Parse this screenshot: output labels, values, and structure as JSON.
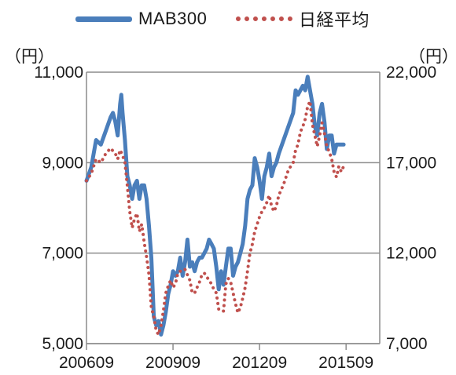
{
  "chart_data": {
    "type": "line",
    "title": "",
    "xlabel": "",
    "left_axis": {
      "unit": "（円）",
      "ylim": [
        5000,
        11000
      ],
      "ticks": [
        "5,000",
        "7,000",
        "9,000",
        "11,000"
      ],
      "tick_values": [
        5000,
        7000,
        9000,
        11000
      ]
    },
    "right_axis": {
      "unit": "（円）",
      "ylim": [
        7000,
        22000
      ],
      "ticks": [
        "7,000",
        "12,000",
        "17,000",
        "22,000"
      ],
      "tick_values": [
        7000,
        12000,
        17000,
        22000
      ]
    },
    "x_ticks": [
      "200609",
      "200909",
      "201209",
      "201509"
    ],
    "x_tick_positions": [
      0,
      36,
      72,
      108
    ],
    "x_range": [
      0,
      122
    ],
    "grid": {
      "horizontal": true,
      "vertical": false
    },
    "legend": "top",
    "series": [
      {
        "name": "MAB300",
        "axis": "left",
        "color": "#4a7ebb",
        "style": "solid",
        "points": [
          [
            0,
            8600
          ],
          [
            2,
            8900
          ],
          [
            4,
            9500
          ],
          [
            6,
            9400
          ],
          [
            8,
            9700
          ],
          [
            10,
            10000
          ],
          [
            11,
            10100
          ],
          [
            12,
            9900
          ],
          [
            13,
            9600
          ],
          [
            14,
            10300
          ],
          [
            14.5,
            10500
          ],
          [
            15,
            10100
          ],
          [
            16,
            9500
          ],
          [
            17,
            8700
          ],
          [
            18,
            8500
          ],
          [
            19,
            8200
          ],
          [
            20,
            8500
          ],
          [
            21,
            8600
          ],
          [
            22,
            8200
          ],
          [
            23,
            8500
          ],
          [
            24,
            8500
          ],
          [
            25,
            8200
          ],
          [
            26,
            7600
          ],
          [
            27,
            6900
          ],
          [
            28,
            5600
          ],
          [
            29,
            5400
          ],
          [
            30,
            5500
          ],
          [
            31,
            5200
          ],
          [
            32,
            5400
          ],
          [
            33,
            5700
          ],
          [
            34,
            6100
          ],
          [
            35,
            6300
          ],
          [
            36,
            6600
          ],
          [
            37,
            6500
          ],
          [
            38,
            6600
          ],
          [
            39,
            6900
          ],
          [
            40,
            6500
          ],
          [
            41,
            6800
          ],
          [
            42,
            7300
          ],
          [
            43,
            6700
          ],
          [
            44,
            6800
          ],
          [
            45,
            6600
          ],
          [
            46,
            6800
          ],
          [
            47,
            6900
          ],
          [
            48,
            6900
          ],
          [
            50,
            7100
          ],
          [
            51,
            7300
          ],
          [
            52,
            7200
          ],
          [
            53,
            7100
          ],
          [
            54,
            6700
          ],
          [
            55,
            6200
          ],
          [
            56,
            6600
          ],
          [
            57,
            6300
          ],
          [
            58,
            6700
          ],
          [
            59,
            7100
          ],
          [
            60,
            7100
          ],
          [
            61,
            6500
          ],
          [
            62,
            6700
          ],
          [
            63,
            6800
          ],
          [
            64,
            7000
          ],
          [
            65,
            7200
          ],
          [
            66,
            7600
          ],
          [
            67,
            8200
          ],
          [
            68,
            8400
          ],
          [
            69,
            8500
          ],
          [
            70,
            9100
          ],
          [
            71,
            8900
          ],
          [
            72,
            8600
          ],
          [
            73,
            8200
          ],
          [
            74,
            8700
          ],
          [
            75,
            8900
          ],
          [
            76,
            9200
          ],
          [
            77,
            8700
          ],
          [
            78,
            8900
          ],
          [
            79,
            9000
          ],
          [
            80,
            9200
          ],
          [
            82,
            9500
          ],
          [
            84,
            9800
          ],
          [
            86,
            10100
          ],
          [
            87,
            10600
          ],
          [
            88,
            10500
          ],
          [
            90,
            10700
          ],
          [
            91,
            10600
          ],
          [
            92,
            10900
          ],
          [
            93,
            10600
          ],
          [
            94,
            10300
          ],
          [
            95,
            9800
          ],
          [
            96,
            9600
          ],
          [
            97,
            10100
          ],
          [
            98,
            10300
          ],
          [
            99,
            9900
          ],
          [
            100,
            9300
          ],
          [
            101,
            9600
          ],
          [
            102,
            9600
          ],
          [
            103,
            9200
          ],
          [
            104,
            9400
          ],
          [
            105,
            9400
          ],
          [
            106,
            9400
          ],
          [
            107,
            9400
          ]
        ]
      },
      {
        "name": "日経平均",
        "axis": "right",
        "color": "#c0504d",
        "style": "dotted",
        "points": [
          [
            0,
            16000
          ],
          [
            2,
            16400
          ],
          [
            4,
            17200
          ],
          [
            6,
            17000
          ],
          [
            8,
            17500
          ],
          [
            10,
            17800
          ],
          [
            12,
            17500
          ],
          [
            13,
            17200
          ],
          [
            14,
            17700
          ],
          [
            15,
            17400
          ],
          [
            16,
            17000
          ],
          [
            17,
            15700
          ],
          [
            18,
            14300
          ],
          [
            19,
            13400
          ],
          [
            20,
            13900
          ],
          [
            21,
            14200
          ],
          [
            22,
            13200
          ],
          [
            23,
            13600
          ],
          [
            24,
            12600
          ],
          [
            25,
            11800
          ],
          [
            26,
            10800
          ],
          [
            27,
            9000
          ],
          [
            28,
            8500
          ],
          [
            29,
            7700
          ],
          [
            30,
            7500
          ],
          [
            31,
            8000
          ],
          [
            32,
            8800
          ],
          [
            33,
            9800
          ],
          [
            34,
            10200
          ],
          [
            35,
            10500
          ],
          [
            36,
            10100
          ],
          [
            37,
            10300
          ],
          [
            38,
            10900
          ],
          [
            39,
            11000
          ],
          [
            40,
            11000
          ],
          [
            41,
            11100
          ],
          [
            42,
            10800
          ],
          [
            43,
            10500
          ],
          [
            44,
            9800
          ],
          [
            45,
            9800
          ],
          [
            46,
            10100
          ],
          [
            47,
            10400
          ],
          [
            48,
            10800
          ],
          [
            49,
            10900
          ],
          [
            50,
            10700
          ],
          [
            51,
            10500
          ],
          [
            52,
            10300
          ],
          [
            53,
            10000
          ],
          [
            54,
            9800
          ],
          [
            55,
            8900
          ],
          [
            56,
            8800
          ],
          [
            57,
            8800
          ],
          [
            58,
            10300
          ],
          [
            59,
            10600
          ],
          [
            60,
            10400
          ],
          [
            61,
            9800
          ],
          [
            62,
            9200
          ],
          [
            63,
            8700
          ],
          [
            64,
            9000
          ],
          [
            65,
            9500
          ],
          [
            66,
            10100
          ],
          [
            67,
            11000
          ],
          [
            68,
            12000
          ],
          [
            69,
            12500
          ],
          [
            70,
            13200
          ],
          [
            71,
            13600
          ],
          [
            72,
            14000
          ],
          [
            73,
            14300
          ],
          [
            74,
            14500
          ],
          [
            75,
            14800
          ],
          [
            76,
            15200
          ],
          [
            77,
            14600
          ],
          [
            78,
            14300
          ],
          [
            79,
            14600
          ],
          [
            80,
            15200
          ],
          [
            82,
            15800
          ],
          [
            84,
            16600
          ],
          [
            86,
            17000
          ],
          [
            87,
            17700
          ],
          [
            88,
            18000
          ],
          [
            89,
            18700
          ],
          [
            90,
            19000
          ],
          [
            91,
            19400
          ],
          [
            92,
            20100
          ],
          [
            93,
            20400
          ],
          [
            94,
            19100
          ],
          [
            95,
            18500
          ],
          [
            96,
            17900
          ],
          [
            97,
            18500
          ],
          [
            98,
            19200
          ],
          [
            99,
            18600
          ],
          [
            100,
            17900
          ],
          [
            101,
            17600
          ],
          [
            102,
            17200
          ],
          [
            103,
            16500
          ],
          [
            104,
            16200
          ],
          [
            105,
            16800
          ],
          [
            106,
            16500
          ],
          [
            107,
            16800
          ]
        ]
      }
    ]
  }
}
